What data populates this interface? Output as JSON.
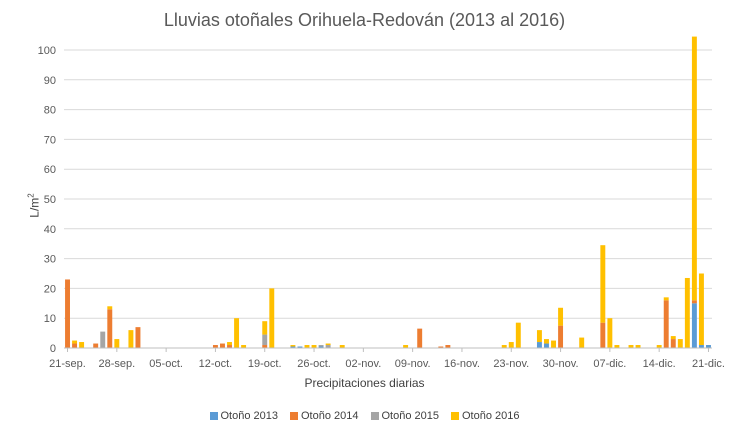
{
  "chart_data": {
    "type": "bar",
    "stacked": true,
    "title": "Lluvias otoñales Orihuela-Redován (2013 al 2016)",
    "xlabel": "Precipitaciones diarias",
    "ylabel": "L/m",
    "ylabel_superscript": "2",
    "ylim": [
      0,
      100
    ],
    "yticks": [
      0,
      10,
      20,
      30,
      40,
      50,
      60,
      70,
      80,
      90,
      100
    ],
    "grid": true,
    "legend": "bottom",
    "start_date": "21-sep.",
    "day_count": 92,
    "xtick_labels": [
      "21-sep.",
      "28-sep.",
      "05-oct.",
      "12-oct.",
      "19-oct.",
      "26-oct.",
      "02-nov.",
      "09-nov.",
      "16-nov.",
      "23-nov.",
      "30-nov.",
      "07-dic.",
      "14-dic.",
      "21-dic."
    ],
    "xtick_days": [
      0,
      7,
      14,
      21,
      28,
      35,
      42,
      49,
      56,
      63,
      70,
      77,
      84,
      91
    ],
    "series": [
      {
        "name": "Otoño 2013",
        "color": "#5B9BD5",
        "points": [
          [
            32,
            0.5
          ],
          [
            33,
            0.5
          ],
          [
            36,
            0.5
          ],
          [
            67,
            2
          ],
          [
            68,
            1.5
          ],
          [
            89,
            15
          ],
          [
            90,
            1
          ],
          [
            91,
            1
          ]
        ]
      },
      {
        "name": "Otoño 2014",
        "color": "#ED7D31",
        "points": [
          [
            0,
            23
          ],
          [
            1,
            1.5
          ],
          [
            4,
            1.5
          ],
          [
            6,
            13
          ],
          [
            10,
            7
          ],
          [
            21,
            1
          ],
          [
            22,
            1.5
          ],
          [
            23,
            1
          ],
          [
            28,
            1
          ],
          [
            50,
            6.5
          ],
          [
            53,
            0.5
          ],
          [
            54,
            1
          ],
          [
            70,
            7.5
          ],
          [
            76,
            8.5
          ],
          [
            85,
            16
          ],
          [
            86,
            3
          ],
          [
            89,
            1
          ]
        ]
      },
      {
        "name": "Otoño 2015",
        "color": "#A5A5A5",
        "points": [
          [
            5,
            5.5
          ],
          [
            28,
            3.5
          ],
          [
            36,
            0.5
          ],
          [
            37,
            1
          ]
        ]
      },
      {
        "name": "Otoño 2016",
        "color": "#FFC000",
        "points": [
          [
            1,
            1
          ],
          [
            2,
            2
          ],
          [
            6,
            1
          ],
          [
            7,
            3
          ],
          [
            9,
            6
          ],
          [
            23,
            1
          ],
          [
            24,
            10
          ],
          [
            25,
            1
          ],
          [
            28,
            4.5
          ],
          [
            29,
            20
          ],
          [
            32,
            0.5
          ],
          [
            34,
            1
          ],
          [
            35,
            1
          ],
          [
            37,
            0.5
          ],
          [
            39,
            1
          ],
          [
            48,
            1
          ],
          [
            62,
            1
          ],
          [
            63,
            2
          ],
          [
            64,
            8.5
          ],
          [
            67,
            4
          ],
          [
            68,
            1.5
          ],
          [
            69,
            2.5
          ],
          [
            70,
            6
          ],
          [
            73,
            3.5
          ],
          [
            76,
            26
          ],
          [
            77,
            10
          ],
          [
            78,
            1
          ],
          [
            80,
            1
          ],
          [
            81,
            1
          ],
          [
            84,
            1
          ],
          [
            85,
            1
          ],
          [
            86,
            1
          ],
          [
            87,
            3
          ],
          [
            88,
            23.5
          ],
          [
            89,
            88.5
          ],
          [
            90,
            24
          ]
        ]
      }
    ]
  }
}
